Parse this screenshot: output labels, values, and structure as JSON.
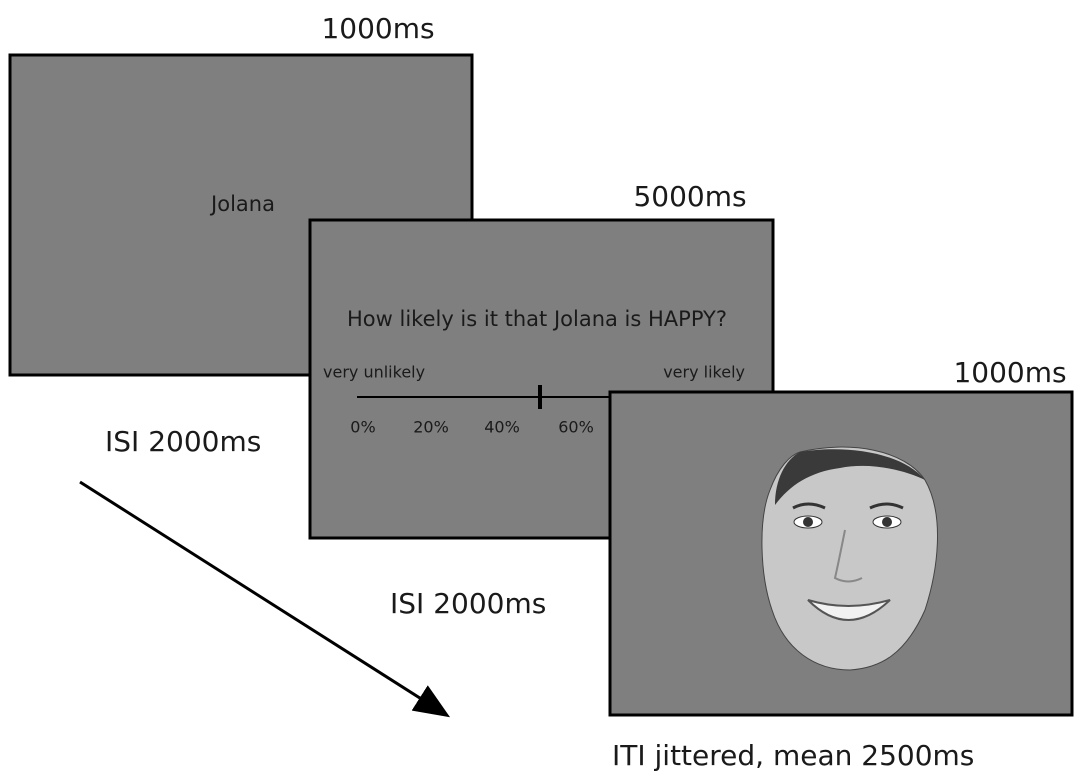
{
  "screens": [
    {
      "duration": "1000ms",
      "text": "Jolana"
    },
    {
      "duration": "5000ms",
      "question": "How likely is it that Jolana is HAPPY?",
      "scale": {
        "left_label": "very unlikely",
        "right_label": "very likely",
        "ticks": [
          "0%",
          "20%",
          "40%",
          "60%"
        ]
      }
    },
    {
      "duration": "1000ms"
    }
  ],
  "intervals": [
    "ISI 2000ms",
    "ISI 2000ms",
    "ITI jittered, mean 2500ms"
  ]
}
